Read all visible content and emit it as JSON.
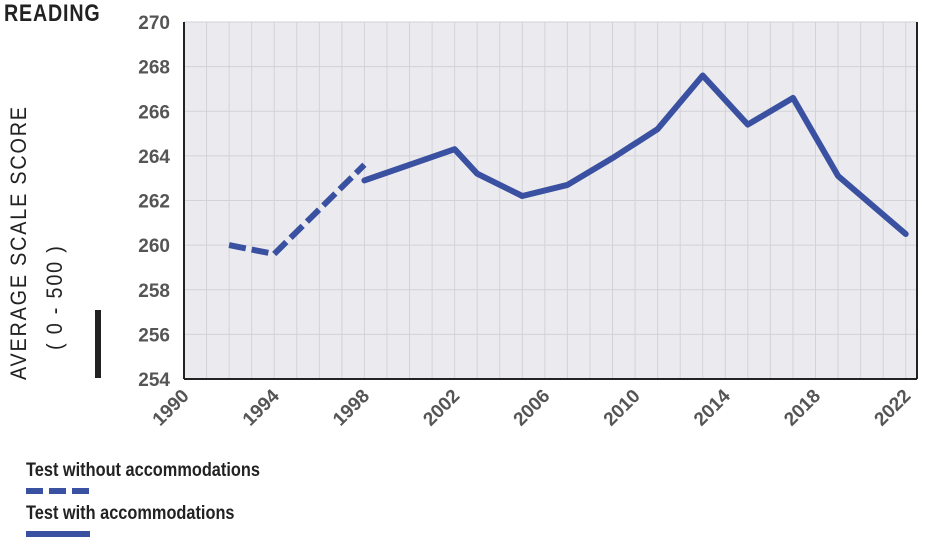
{
  "title": "READING",
  "y_axis": {
    "label_line1": "AVERAGE SCALE SCORE",
    "label_line2": "( 0 - 500 )"
  },
  "legend": [
    {
      "label": "Test without accommodations",
      "style": "dashed"
    },
    {
      "label": "Test with accommodations",
      "style": "solid"
    }
  ],
  "colors": {
    "line": "#3a50a0",
    "plot_background": "#ebebef",
    "grid": "#d2d2d8",
    "axis": "#222222",
    "tick_text": "#555555"
  },
  "chart_data": {
    "type": "line",
    "title": "READING",
    "xlabel": "",
    "ylabel": "AVERAGE SCALE SCORE ( 0 - 500 )",
    "xlim": [
      1990,
      2022.5
    ],
    "ylim": [
      254,
      270
    ],
    "x_ticks": [
      1990,
      1994,
      1998,
      2002,
      2006,
      2010,
      2014,
      2018,
      2022
    ],
    "y_ticks": [
      254,
      256,
      258,
      260,
      262,
      264,
      266,
      268,
      270
    ],
    "grid": true,
    "legend_position": "bottom",
    "series": [
      {
        "name": "Test without accommodations",
        "style": "dashed",
        "x": [
          1992,
          1994,
          1998
        ],
        "y": [
          260,
          259.6,
          263.6
        ]
      },
      {
        "name": "Test with accommodations",
        "style": "solid",
        "x": [
          1998,
          2000,
          2002,
          2003,
          2005,
          2007,
          2009,
          2011,
          2013,
          2015,
          2017,
          2019,
          2022
        ],
        "y": [
          262.9,
          263.6,
          264.3,
          263.2,
          262.2,
          262.7,
          263.9,
          265.2,
          267.6,
          265.4,
          266.6,
          263.1,
          260.5
        ]
      }
    ]
  }
}
